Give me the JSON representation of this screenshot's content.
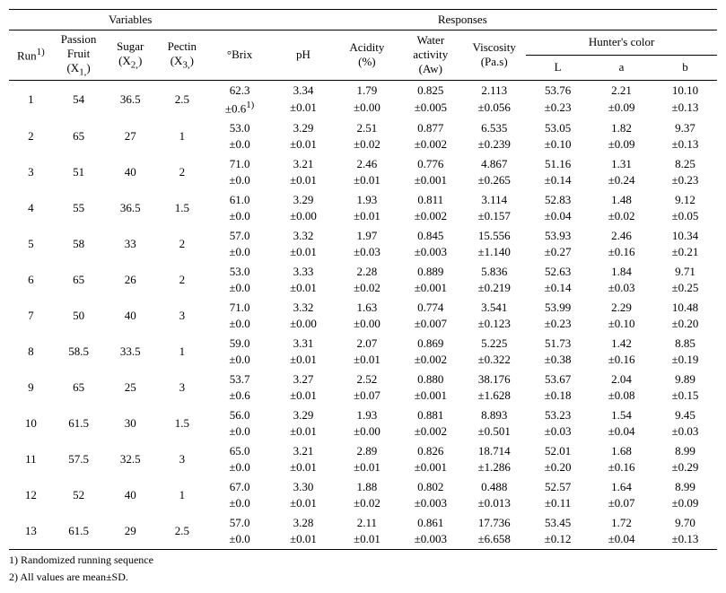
{
  "headers": {
    "variables": "Variables",
    "responses": "Responses",
    "run": "Run",
    "run_sup": "1)",
    "passion_fruit": "Passion\nFruit\n(X",
    "passion_fruit_sub": "1,",
    "sugar": "Sugar\n(X",
    "sugar_sub": "2,",
    "pectin": "Pectin\n(X",
    "pectin_sub": "3,",
    "brix": "°Brix",
    "ph": "pH",
    "acidity": "Acidity\n(%)",
    "water_activity": "Water\nactivity\n(Aw)",
    "viscosity": "Viscosity\n(Pa.s)",
    "hunters_color": "Hunter's color",
    "L": "L",
    "a": "a",
    "b": "b"
  },
  "rows": [
    {
      "run": "1",
      "x1": "54",
      "x2": "36.5",
      "x3": "2.5",
      "brix": "62.3",
      "brix_sd": "±0.6",
      "brix_sup": "1)",
      "ph": "3.34",
      "ph_sd": "±0.01",
      "acid": "1.79",
      "acid_sd": "±0.00",
      "aw": "0.825",
      "aw_sd": "±0.005",
      "visc": "2.113",
      "visc_sd": "±0.056",
      "L": "53.76",
      "L_sd": "±0.23",
      "a_": "2.21",
      "a_sd": "±0.09",
      "b_": "10.10",
      "b_sd": "±0.13"
    },
    {
      "run": "2",
      "x1": "65",
      "x2": "27",
      "x3": "1",
      "brix": "53.0",
      "brix_sd": "±0.0",
      "ph": "3.29",
      "ph_sd": "±0.01",
      "acid": "2.51",
      "acid_sd": "±0.02",
      "aw": "0.877",
      "aw_sd": "±0.002",
      "visc": "6.535",
      "visc_sd": "±0.239",
      "L": "53.05",
      "L_sd": "±0.10",
      "a_": "1.82",
      "a_sd": "±0.09",
      "b_": "9.37",
      "b_sd": "±0.13"
    },
    {
      "run": "3",
      "x1": "51",
      "x2": "40",
      "x3": "2",
      "brix": "71.0",
      "brix_sd": "±0.0",
      "ph": "3.21",
      "ph_sd": "±0.01",
      "acid": "2.46",
      "acid_sd": "±0.01",
      "aw": "0.776",
      "aw_sd": "±0.001",
      "visc": "4.867",
      "visc_sd": "±0.265",
      "L": "51.16",
      "L_sd": "±0.14",
      "a_": "1.31",
      "a_sd": "±0.24",
      "b_": "8.25",
      "b_sd": "±0.23"
    },
    {
      "run": "4",
      "x1": "55",
      "x2": "36.5",
      "x3": "1.5",
      "brix": "61.0",
      "brix_sd": "±0.0",
      "ph": "3.29",
      "ph_sd": "±0.00",
      "acid": "1.93",
      "acid_sd": "±0.01",
      "aw": "0.811",
      "aw_sd": "±0.002",
      "visc": "3.114",
      "visc_sd": "±0.157",
      "L": "52.83",
      "L_sd": "±0.04",
      "a_": "1.48",
      "a_sd": "±0.02",
      "b_": "9.12",
      "b_sd": "±0.05"
    },
    {
      "run": "5",
      "x1": "58",
      "x2": "33",
      "x3": "2",
      "brix": "57.0",
      "brix_sd": "±0.0",
      "ph": "3.32",
      "ph_sd": "±0.01",
      "acid": "1.97",
      "acid_sd": "±0.03",
      "aw": "0.845",
      "aw_sd": "±0.003",
      "visc": "15.556",
      "visc_sd": "±1.140",
      "L": "53.93",
      "L_sd": "±0.27",
      "a_": "2.46",
      "a_sd": "±0.16",
      "b_": "10.34",
      "b_sd": "±0.21"
    },
    {
      "run": "6",
      "x1": "65",
      "x2": "26",
      "x3": "2",
      "brix": "53.0",
      "brix_sd": "±0.0",
      "ph": "3.33",
      "ph_sd": "±0.01",
      "acid": "2.28",
      "acid_sd": "±0.02",
      "aw": "0.889",
      "aw_sd": "±0.001",
      "visc": "5.836",
      "visc_sd": "±0.219",
      "L": "52.63",
      "L_sd": "±0.14",
      "a_": "1.84",
      "a_sd": "±0.03",
      "b_": "9.71",
      "b_sd": "±0.25"
    },
    {
      "run": "7",
      "x1": "50",
      "x2": "40",
      "x3": "3",
      "brix": "71.0",
      "brix_sd": "±0.0",
      "ph": "3.32",
      "ph_sd": "±0.00",
      "acid": "1.63",
      "acid_sd": "±0.00",
      "aw": "0.774",
      "aw_sd": "±0.007",
      "visc": "3.541",
      "visc_sd": "±0.123",
      "L": "53.99",
      "L_sd": "±0.23",
      "a_": "2.29",
      "a_sd": "±0.10",
      "b_": "10.48",
      "b_sd": "±0.20"
    },
    {
      "run": "8",
      "x1": "58.5",
      "x2": "33.5",
      "x3": "1",
      "brix": "59.0",
      "brix_sd": "±0.0",
      "ph": "3.31",
      "ph_sd": "±0.01",
      "acid": "2.07",
      "acid_sd": "±0.01",
      "aw": "0.869",
      "aw_sd": "±0.002",
      "visc": "5.225",
      "visc_sd": "±0.322",
      "L": "51.73",
      "L_sd": "±0.38",
      "a_": "1.42",
      "a_sd": "±0.16",
      "b_": "8.85",
      "b_sd": "±0.19"
    },
    {
      "run": "9",
      "x1": "65",
      "x2": "25",
      "x3": "3",
      "brix": "53.7",
      "brix_sd": "±0.6",
      "ph": "3.27",
      "ph_sd": "±0.01",
      "acid": "2.52",
      "acid_sd": "±0.07",
      "aw": "0.880",
      "aw_sd": "±0.001",
      "visc": "38.176",
      "visc_sd": "±1.628",
      "L": "53.67",
      "L_sd": "±0.18",
      "a_": "2.04",
      "a_sd": "±0.08",
      "b_": "9.89",
      "b_sd": "±0.15"
    },
    {
      "run": "10",
      "x1": "61.5",
      "x2": "30",
      "x3": "1.5",
      "brix": "56.0",
      "brix_sd": "±0.0",
      "ph": "3.29",
      "ph_sd": "±0.01",
      "acid": "1.93",
      "acid_sd": "±0.00",
      "aw": "0.881",
      "aw_sd": "±0.002",
      "visc": "8.893",
      "visc_sd": "±0.501",
      "L": "53.23",
      "L_sd": "±0.03",
      "a_": "1.54",
      "a_sd": "±0.04",
      "b_": "9.45",
      "b_sd": "±0.03"
    },
    {
      "run": "11",
      "x1": "57.5",
      "x2": "32.5",
      "x3": "3",
      "brix": "65.0",
      "brix_sd": "±0.0",
      "ph": "3.21",
      "ph_sd": "±0.01",
      "acid": "2.89",
      "acid_sd": "±0.01",
      "aw": "0.826",
      "aw_sd": "±0.001",
      "visc": "18.714",
      "visc_sd": "±1.286",
      "L": "52.01",
      "L_sd": "±0.20",
      "a_": "1.68",
      "a_sd": "±0.16",
      "b_": "8.99",
      "b_sd": "±0.29"
    },
    {
      "run": "12",
      "x1": "52",
      "x2": "40",
      "x3": "1",
      "brix": "67.0",
      "brix_sd": "±0.0",
      "ph": "3.30",
      "ph_sd": "±0.01",
      "acid": "1.88",
      "acid_sd": "±0.02",
      "aw": "0.802",
      "aw_sd": "±0.003",
      "visc": "0.488",
      "visc_sd": "±0.013",
      "L": "52.57",
      "L_sd": "±0.11",
      "a_": "1.64",
      "a_sd": "±0.07",
      "b_": "8.99",
      "b_sd": "±0.09"
    },
    {
      "run": "13",
      "x1": "61.5",
      "x2": "29",
      "x3": "2.5",
      "brix": "57.0",
      "brix_sd": "±0.0",
      "ph": "3.28",
      "ph_sd": "±0.01",
      "acid": "2.11",
      "acid_sd": "±0.01",
      "aw": "0.861",
      "aw_sd": "±0.003",
      "visc": "17.736",
      "visc_sd": "±6.658",
      "L": "53.45",
      "L_sd": "±0.12",
      "a_": "1.72",
      "a_sd": "±0.04",
      "b_": "9.70",
      "b_sd": "±0.13"
    }
  ],
  "footnotes": {
    "f1": "1) Randomized running sequence",
    "f2": "2) All values are mean±SD."
  }
}
